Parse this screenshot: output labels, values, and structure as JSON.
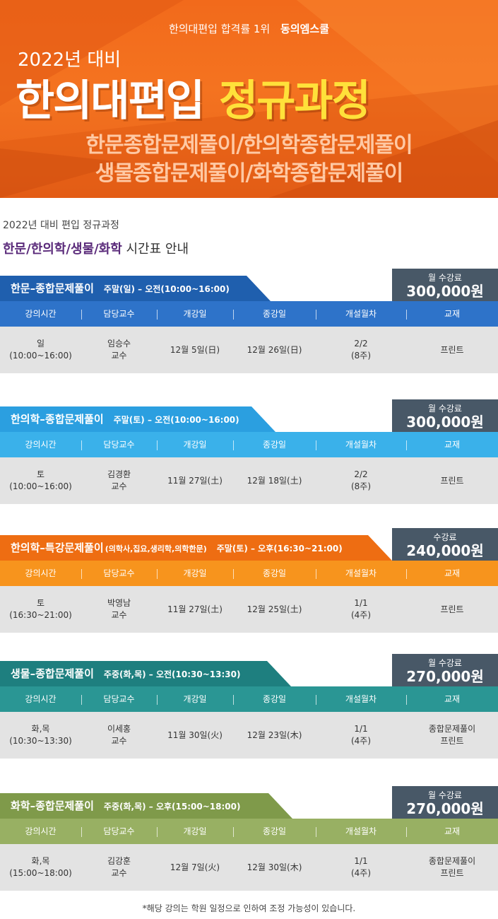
{
  "banner": {
    "tagline": "한의대편입 합격률 1위",
    "brand": "동의엠스쿨",
    "year": "2022년 대비",
    "title_main": "한의대편입",
    "title_accent": "정규과정",
    "subtitle1": "한문종합문제풀이/한의학종합문제풀이",
    "subtitle2": "생물종합문제풀이/화학종합문제풀이",
    "colors": {
      "orange": "#f47320",
      "yellow": "#ffe13a"
    }
  },
  "intro": {
    "line1": "2022년 대비 편입 정규과정",
    "line2_highlight": "한문/한의학/생물/화학",
    "line2_rest": " 시간표 안내"
  },
  "headers": [
    "강의시간",
    "담당교수",
    "개강일",
    "종강일",
    "개설월차",
    "교재"
  ],
  "courses": [
    {
      "title": "한문–종합문제풀이",
      "extra": "",
      "schedule": "주말(일) – 오전(10:00~16:00)",
      "fee_label": "월 수강료",
      "fee": "300,000원",
      "ribbon_color": "#1f5fae",
      "header_color": "#2e73c9",
      "row": {
        "time": "일\n(10:00~16:00)",
        "professor": "임승수\n교수",
        "start": "12월 5일(日)",
        "end": "12월 26일(日)",
        "months": "2/2\n(8주)",
        "book": "프린트"
      }
    },
    {
      "title": "한의학–종합문제풀이",
      "extra": "",
      "schedule": "주말(토) – 오전(10:00~16:00)",
      "fee_label": "월 수강료",
      "fee": "300,000원",
      "ribbon_color": "#2b9fe0",
      "header_color": "#3ab1ea",
      "row": {
        "time": "토\n(10:00~16:00)",
        "professor": "김경환\n교수",
        "start": "11월 27일(土)",
        "end": "12월 18일(土)",
        "months": "2/2\n(8주)",
        "book": "프린트"
      }
    },
    {
      "title": "한의학–특강문제풀이",
      "extra": "(의학사,집요,생리학,의학한문)",
      "schedule": "주말(토) – 오후(16:30~21:00)",
      "fee_label": "수강료",
      "fee": "240,000원",
      "ribbon_color": "#ee6d12",
      "header_color": "#f7941d",
      "row": {
        "time": "토\n(16:30~21:00)",
        "professor": "박영남\n교수",
        "start": "11월 27일(土)",
        "end": "12월 25일(土)",
        "months": "1/1\n(4주)",
        "book": "프린트"
      }
    },
    {
      "title": "생물–종합문제풀이",
      "extra": "",
      "schedule": "주중(화,목) – 오전(10:30~13:30)",
      "fee_label": "월 수강료",
      "fee": "270,000원",
      "ribbon_color": "#1e7f7f",
      "header_color": "#2a9694",
      "row": {
        "time": "화,목\n(10:30~13:30)",
        "professor": "이세홍\n교수",
        "start": "11월 30일(火)",
        "end": "12월 23일(木)",
        "months": "1/1\n(4주)",
        "book": "종합문제풀이\n프린트"
      }
    },
    {
      "title": "화학–종합문제풀이",
      "extra": "",
      "schedule": "주중(화,목) – 오후(15:00~18:00)",
      "fee_label": "월 수강료",
      "fee": "270,000원",
      "ribbon_color": "#7f9a4a",
      "header_color": "#98b063",
      "row": {
        "time": "화,목\n(15:00~18:00)",
        "professor": "김강훈\n교수",
        "start": "12월 7일(火)",
        "end": "12월 30일(木)",
        "months": "1/1\n(4주)",
        "book": "종합문제풀이\n프린트"
      }
    }
  ],
  "footnote": "*해당 강의는 학원 일정으로 인하여 조정 가능성이 있습니다."
}
